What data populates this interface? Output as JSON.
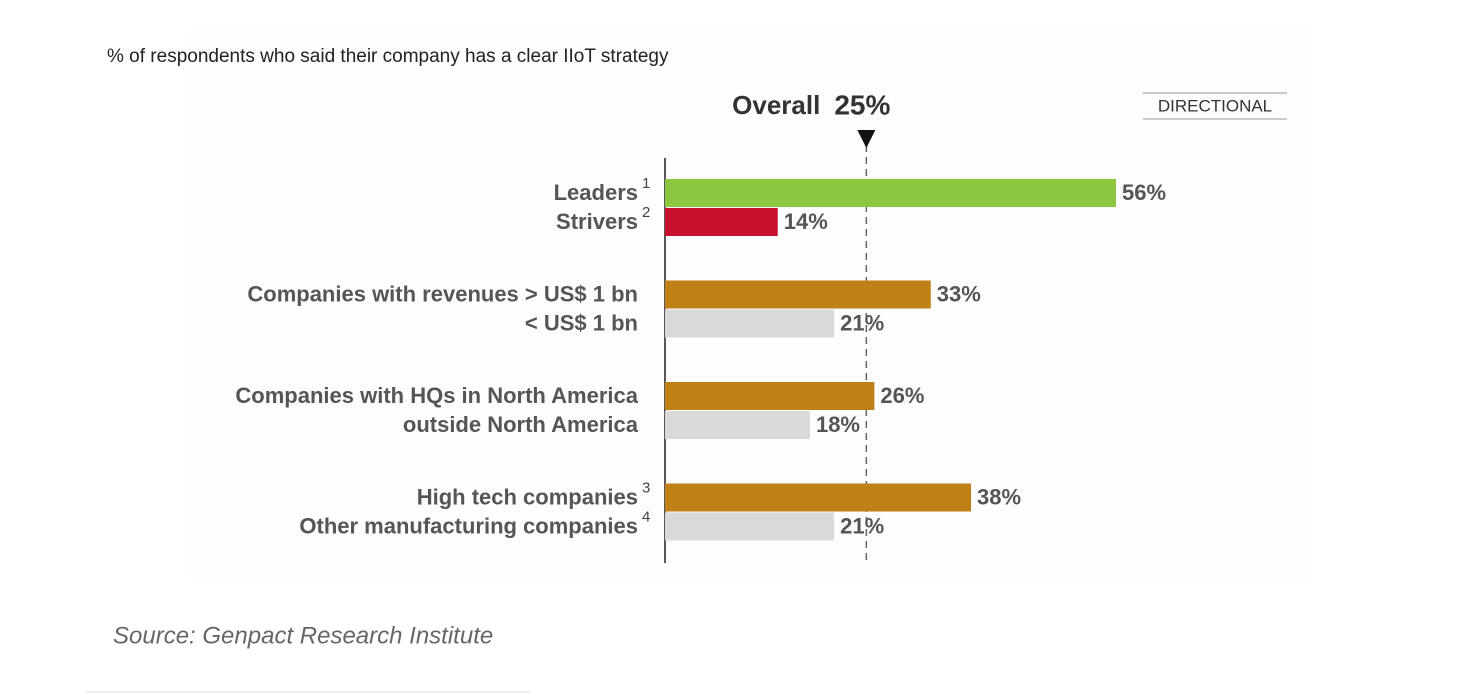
{
  "chart_data": {
    "type": "bar",
    "title": "% of respondents who said their company has a clear IIoT strategy",
    "badge": "DIRECTIONAL",
    "source": "Source: Genpact Research Institute",
    "categories": [
      "Leaders",
      "Strivers",
      "Companies with revenues > US$ 1 bn",
      "< US$ 1 bn",
      "Companies with HQs in North America",
      "outside North America",
      "High tech companies",
      "Other manufacturing companies"
    ],
    "superscripts": [
      "1",
      "2",
      null,
      null,
      null,
      null,
      "3",
      "4"
    ],
    "values": [
      56,
      14,
      33,
      21,
      26,
      18,
      38,
      21
    ],
    "value_labels": [
      "56%",
      "14%",
      "33%",
      "21%",
      "26%",
      "18%",
      "38%",
      "21%"
    ],
    "colors": [
      "#8dc63f",
      "#c8102e",
      "#bf8015",
      "#d9d9d9",
      "#bf8015",
      "#d9d9d9",
      "#bf8015",
      "#d9d9d9"
    ],
    "reference": {
      "label": "Overall",
      "value": 25,
      "value_label": "25%"
    },
    "xlim": [
      0,
      56
    ]
  }
}
